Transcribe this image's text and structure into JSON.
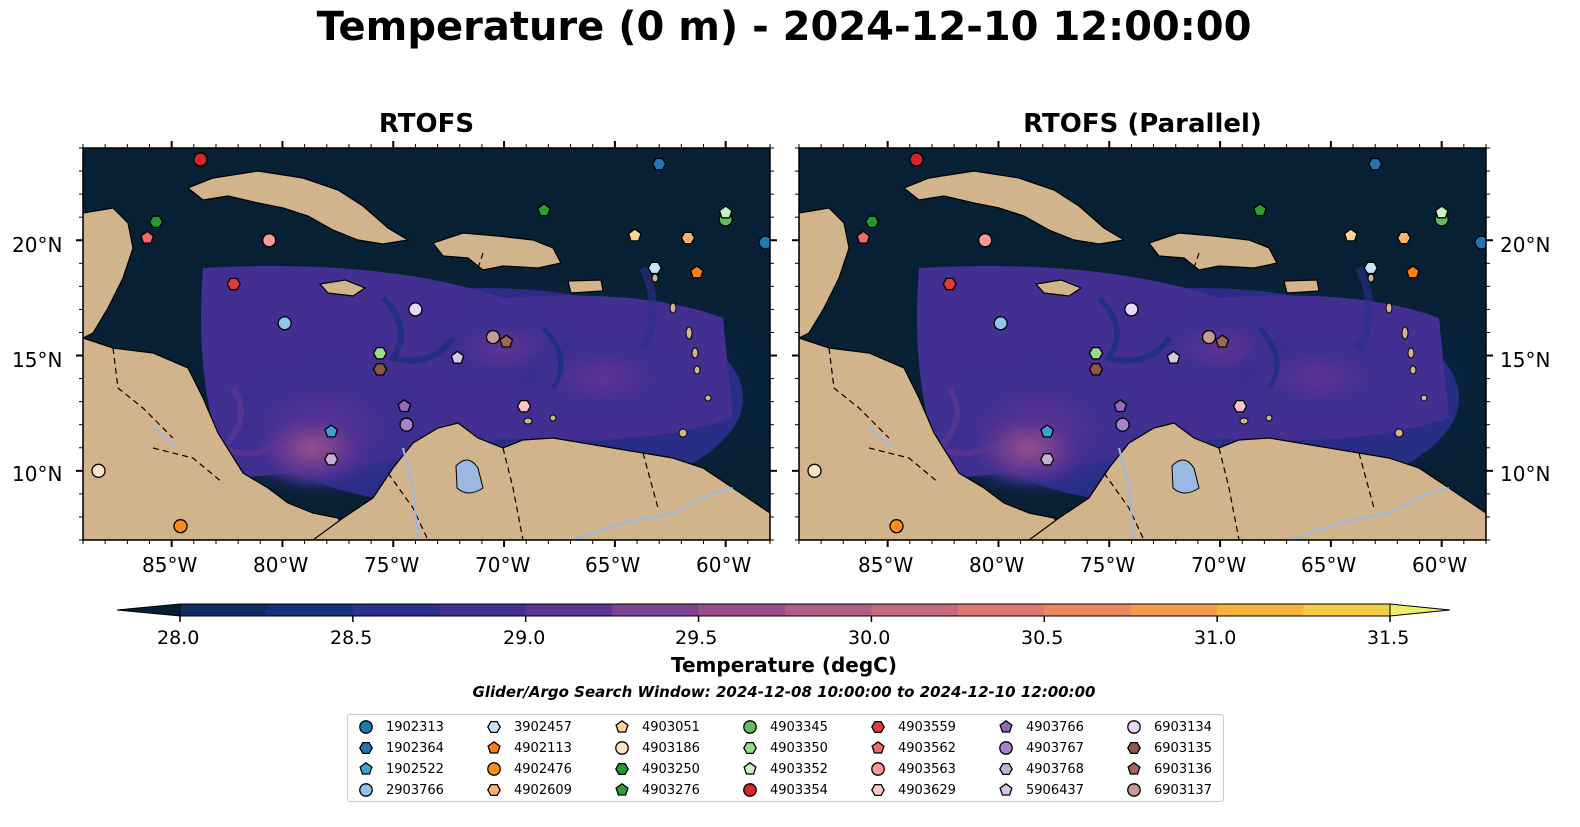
{
  "title": "Temperature (0 m) - 2024-12-10 12:00:00",
  "panels": [
    {
      "title": "RTOFS"
    },
    {
      "title": "RTOFS (Parallel)"
    }
  ],
  "map_extent": {
    "lon_min": -89.0,
    "lon_max": -58.0,
    "lat_min": 7.0,
    "lat_max": 24.0
  },
  "lon_ticks": [
    "85°W",
    "80°W",
    "75°W",
    "70°W",
    "65°W",
    "60°W"
  ],
  "lat_ticks": [
    "20°N",
    "15°N",
    "10°N"
  ],
  "colorbar": {
    "label": "Temperature (degC)",
    "min": 28.0,
    "max": 31.5,
    "step": 0.25,
    "tick_labels": [
      "28.0",
      "28.5",
      "29.0",
      "29.5",
      "30.0",
      "30.5",
      "31.0",
      "31.5"
    ],
    "colors": [
      "#071e2e",
      "#0b2e5f",
      "#162f7c",
      "#2c2f8e",
      "#432f92",
      "#5e3592",
      "#7b4390",
      "#95508c",
      "#ae5d86",
      "#c66a7d",
      "#dc7870",
      "#ec875f",
      "#f49b4b",
      "#f7b23b",
      "#f5cc45",
      "#ecef66"
    ]
  },
  "subtitle": "Glider/Argo Search Window: 2024-12-08 10:00:00 to 2024-12-10 12:00:00",
  "colors": {
    "land": "#d2b48c",
    "ocean_deep": "#082033",
    "lake": "#9bb8e0"
  },
  "platforms": [
    {
      "id": "1902313",
      "marker": "circle",
      "color": "#1f77b4"
    },
    {
      "id": "1902364",
      "marker": "hexagon",
      "color": "#1f77b4"
    },
    {
      "id": "1902522",
      "marker": "pentagon",
      "color": "#3ba3d6"
    },
    {
      "id": "2903766",
      "marker": "circle",
      "color": "#8ec5ea"
    },
    {
      "id": "3902457",
      "marker": "hexagon",
      "color": "#c9e4f7"
    },
    {
      "id": "4902113",
      "marker": "pentagon",
      "color": "#ff7f0e"
    },
    {
      "id": "4902476",
      "marker": "circle",
      "color": "#ff8c1a"
    },
    {
      "id": "4902609",
      "marker": "hexagon",
      "color": "#ffb266"
    },
    {
      "id": "4903051",
      "marker": "pentagon",
      "color": "#ffd29a"
    },
    {
      "id": "4903186",
      "marker": "circle",
      "color": "#ffe3c4"
    },
    {
      "id": "4903250",
      "marker": "hexagon",
      "color": "#1e9b2f"
    },
    {
      "id": "4903276",
      "marker": "pentagon",
      "color": "#2ca02c"
    },
    {
      "id": "4903345",
      "marker": "circle",
      "color": "#5fbd5f"
    },
    {
      "id": "4903350",
      "marker": "hexagon",
      "color": "#98df8a"
    },
    {
      "id": "4903352",
      "marker": "pentagon",
      "color": "#c8f2c0"
    },
    {
      "id": "4903354",
      "marker": "circle",
      "color": "#d62728"
    },
    {
      "id": "4903559",
      "marker": "hexagon",
      "color": "#e03a3a"
    },
    {
      "id": "4903562",
      "marker": "pentagon",
      "color": "#f06a6a"
    },
    {
      "id": "4903563",
      "marker": "circle",
      "color": "#ff9896"
    },
    {
      "id": "4903629",
      "marker": "hexagon",
      "color": "#ffc6c4"
    },
    {
      "id": "4903766",
      "marker": "pentagon",
      "color": "#9467bd"
    },
    {
      "id": "4903767",
      "marker": "circle",
      "color": "#a882cf"
    },
    {
      "id": "4903768",
      "marker": "hexagon",
      "color": "#c5b0d5"
    },
    {
      "id": "5906437",
      "marker": "pentagon",
      "color": "#d8c4ee"
    },
    {
      "id": "6903134",
      "marker": "circle",
      "color": "#ead6f7"
    },
    {
      "id": "6903135",
      "marker": "hexagon",
      "color": "#8c564b"
    },
    {
      "id": "6903136",
      "marker": "pentagon",
      "color": "#a0665a"
    },
    {
      "id": "6903137",
      "marker": "circle",
      "color": "#c49c94"
    }
  ],
  "positions": {
    "1902313": [
      -58.2,
      19.9
    ],
    "1902364": [
      -63.0,
      23.3
    ],
    "1902522": [
      -77.8,
      11.7
    ],
    "2903766": [
      -79.9,
      16.4
    ],
    "3902457": [
      -63.2,
      18.8
    ],
    "4902113": [
      -61.3,
      18.6
    ],
    "4902476": [
      -84.6,
      7.6
    ],
    "4902609": [
      -61.7,
      20.1
    ],
    "4903051": [
      -64.1,
      20.2
    ],
    "4903186": [
      -88.3,
      10.0
    ],
    "4903250": [
      -85.7,
      20.8
    ],
    "4903276": [
      -68.2,
      21.3
    ],
    "4903345": [
      -60.0,
      20.9
    ],
    "4903350": [
      -75.6,
      15.1
    ],
    "4903352": [
      -60.0,
      21.2
    ],
    "4903354": [
      -83.7,
      23.5
    ],
    "4903559": [
      -82.2,
      18.1
    ],
    "4903562": [
      -86.1,
      20.1
    ],
    "4903563": [
      -80.6,
      20.0
    ],
    "4903629": [
      -69.1,
      12.8
    ],
    "4903766": [
      -74.5,
      12.8
    ],
    "4903767": [
      -74.4,
      12.0
    ],
    "4903768": [
      -77.8,
      10.5
    ],
    "5906437": [
      -72.1,
      14.9
    ],
    "6903134": [
      -74.0,
      17.0
    ],
    "6903135": [
      -75.6,
      14.4
    ],
    "6903136": [
      -69.9,
      15.6
    ],
    "6903137": [
      -70.5,
      15.8
    ]
  }
}
